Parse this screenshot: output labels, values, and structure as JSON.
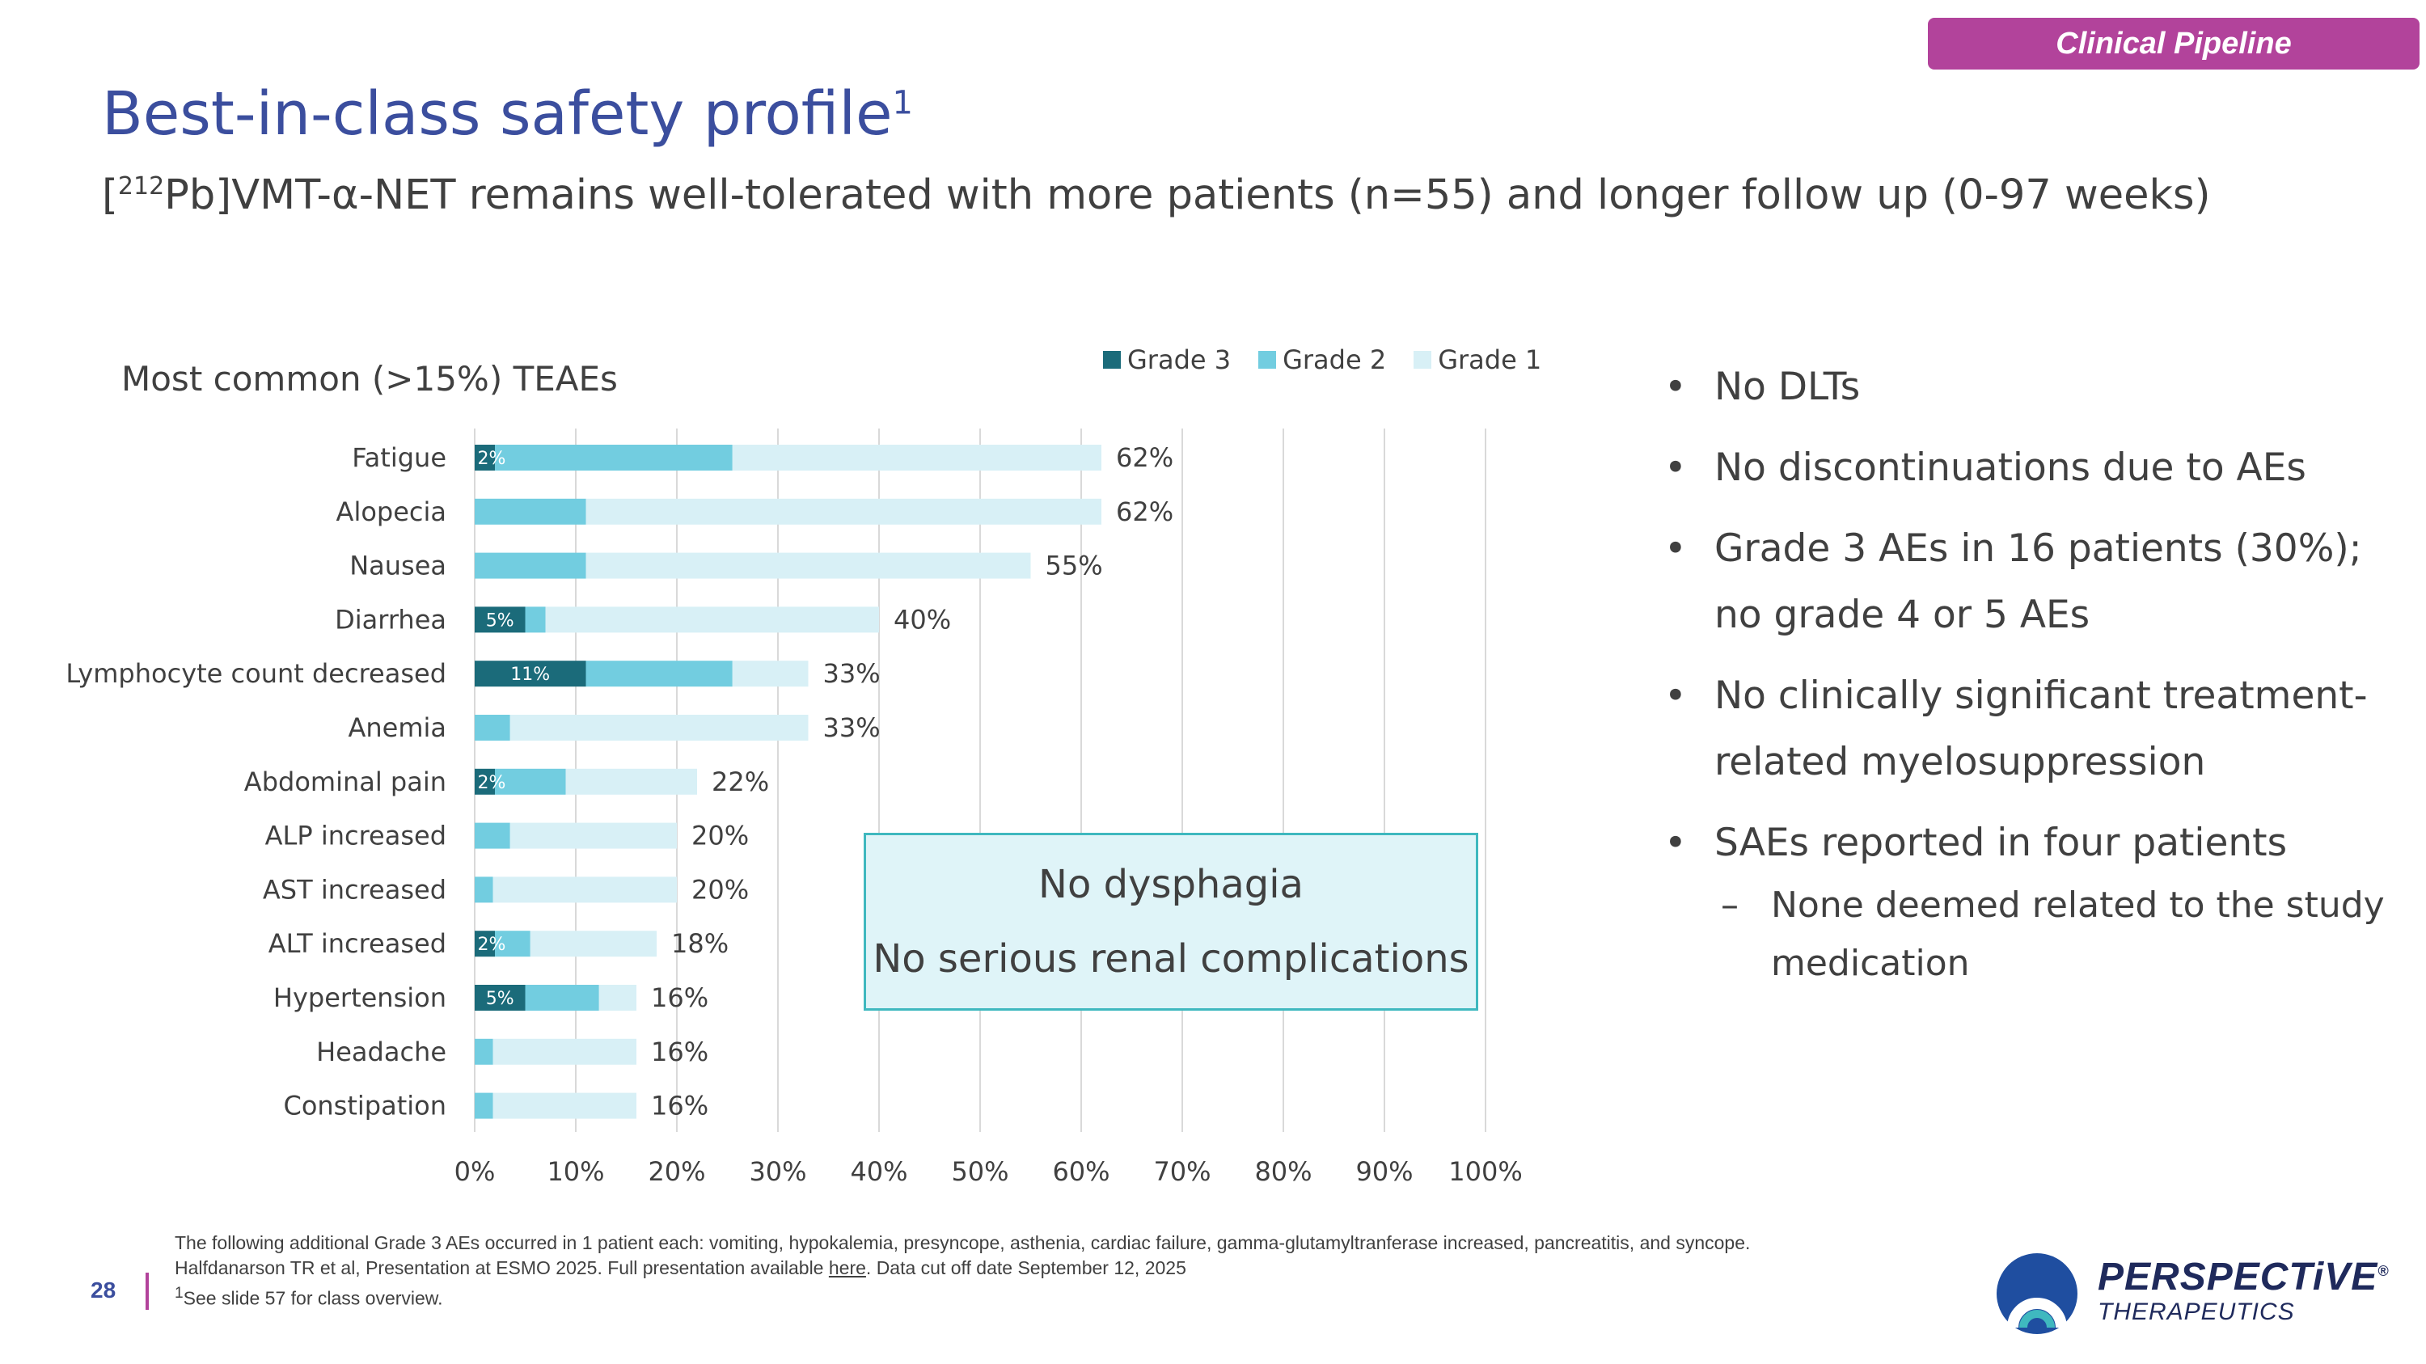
{
  "header": {
    "tag": "Clinical Pipeline"
  },
  "title": {
    "main": "Best-in-class safety profile",
    "sup": "1"
  },
  "subtitle": {
    "pre": "[",
    "isotope": "212",
    "post": "Pb]VMT-α-NET remains well-tolerated with more patients (n=55) and longer follow up (0-97 weeks)"
  },
  "chart_heading": "Most common (>15%) TEAEs",
  "colors": {
    "grade3": "#1b6b7a",
    "grade2": "#72cde0",
    "grade1": "#d8f0f6",
    "accent": "#b2439b",
    "title": "#3b4e9e"
  },
  "chart_data": {
    "type": "bar",
    "orientation": "horizontal",
    "stacked": true,
    "title": "Most common (>15%) TEAEs",
    "categories": [
      "Fatigue",
      "Alopecia",
      "Nausea",
      "Diarrhea",
      "Lymphocyte count decreased",
      "Anemia",
      "Abdominal pain",
      "ALP increased",
      "AST increased",
      "ALT increased",
      "Hypertension",
      "Headache",
      "Constipation"
    ],
    "series": [
      {
        "name": "Grade 3",
        "values": [
          2,
          0,
          0,
          5,
          11,
          0,
          2,
          0,
          0,
          2,
          5,
          0,
          0
        ]
      },
      {
        "name": "Grade 2",
        "values": [
          23.5,
          11,
          11,
          2,
          14.5,
          3.5,
          7,
          3.5,
          1.8,
          3.5,
          7.3,
          1.8,
          1.8
        ]
      },
      {
        "name": "Grade 1",
        "values": [
          36.5,
          51,
          44,
          33,
          7.5,
          29.5,
          13,
          16.5,
          18.2,
          12.5,
          3.7,
          14.2,
          14.2
        ]
      }
    ],
    "inside_labels": [
      "2%",
      "",
      "",
      "5%",
      "11%",
      "",
      "2%",
      "",
      "",
      "2%",
      "5%",
      "",
      ""
    ],
    "total_labels": [
      "62%",
      "62%",
      "55%",
      "40%",
      "33%",
      "33%",
      "22%",
      "20%",
      "20%",
      "18%",
      "16%",
      "16%",
      "16%"
    ],
    "xticks": [
      "0%",
      "10%",
      "20%",
      "30%",
      "40%",
      "50%",
      "60%",
      "70%",
      "80%",
      "90%",
      "100%"
    ],
    "xlim": [
      0,
      100
    ],
    "legend": [
      "Grade 3",
      "Grade 2",
      "Grade 1"
    ],
    "legend_position": "top"
  },
  "callout": {
    "line1": "No dysphagia",
    "line2": "No serious renal complications"
  },
  "bullets": [
    "No DLTs",
    "No discontinuations due to AEs",
    "Grade 3 AEs in 16 patients (30%); no grade 4 or 5 AEs",
    "No clinically significant treatment-related myelosuppression",
    "SAEs reported in four patients"
  ],
  "sub_bullet": "None deemed related to the study medication",
  "footnotes": {
    "line1": "The following additional Grade 3 AEs occurred in 1 patient each: vomiting, hypokalemia, presyncope, asthenia, cardiac failure, gamma-glutamyltranferase increased, pancreatitis, and syncope.",
    "line2_pre": "Halfdanarson TR et al, Presentation at ESMO 2025. Full presentation available ",
    "line2_link": "here",
    "line2_post": ". Data cut off date September 12, 2025",
    "line3_sup": "1",
    "line3": "See slide 57 for class overview."
  },
  "page_number": "28",
  "logo": {
    "name": "PERSPECTiVE",
    "reg": "®",
    "sub": "THERAPEUTICS"
  }
}
